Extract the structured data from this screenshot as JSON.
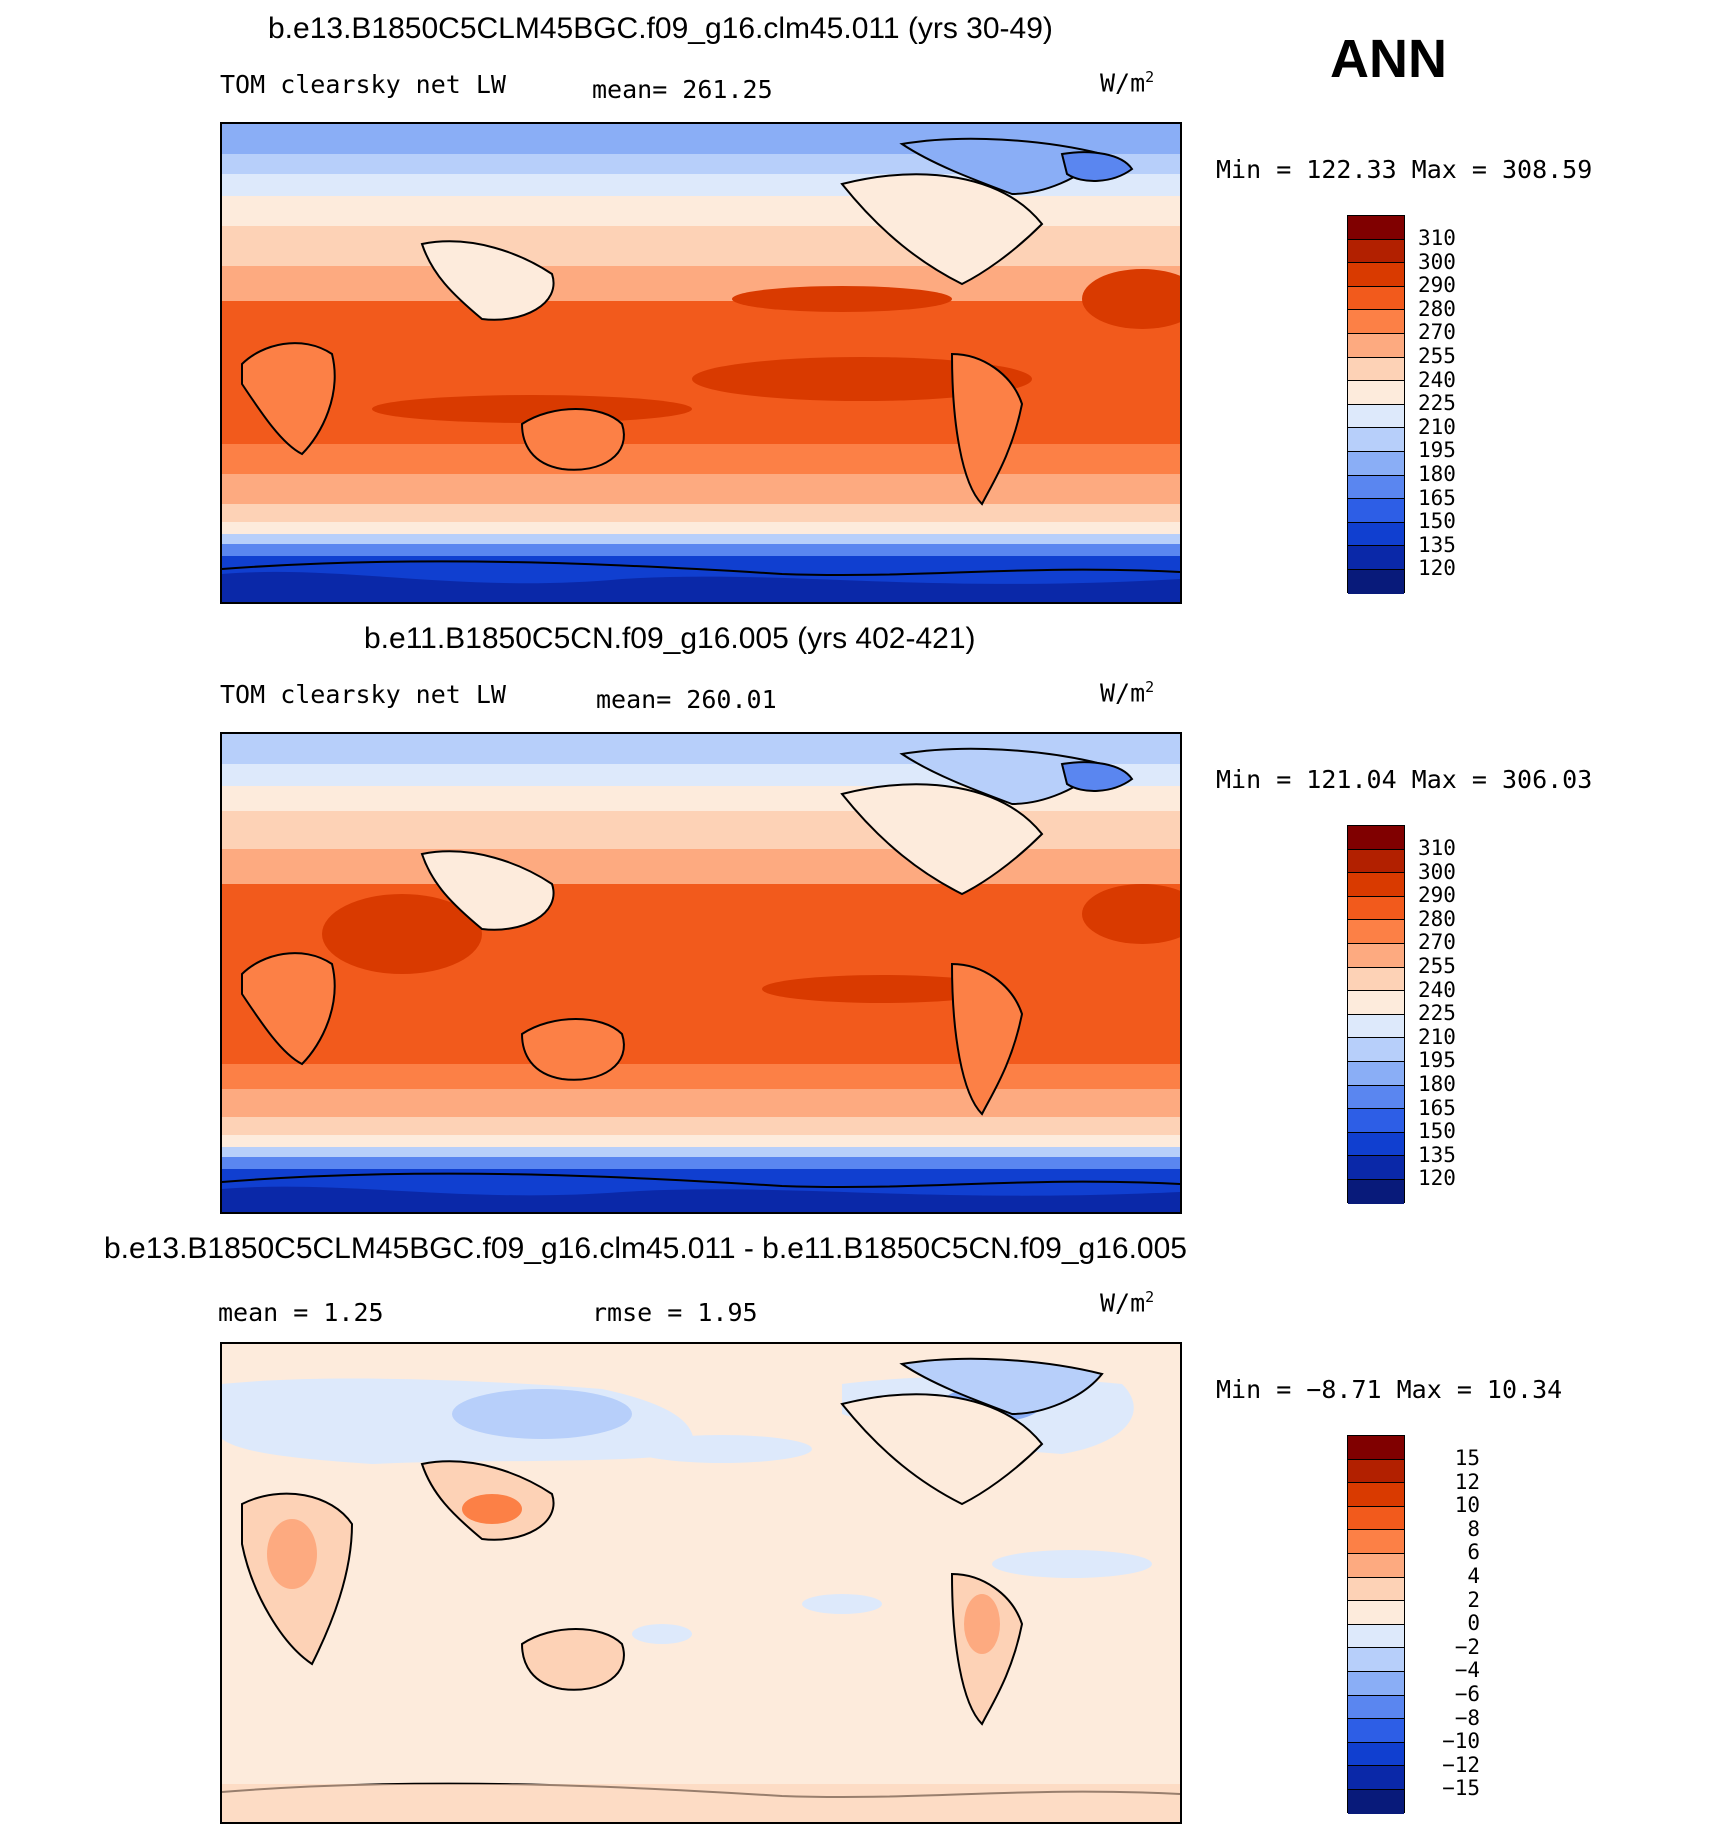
{
  "season": "ANN",
  "panels": [
    {
      "title": "b.e13.B1850C5CLM45BGC.f09_g16.clm45.011 (yrs 30-49)",
      "variable": "TOM clearsky net LW",
      "stat_text": "mean= 261.25",
      "units_base": "W/m",
      "units_exp": "2",
      "minmax": "Min = 122.33 Max = 308.59",
      "levels": [
        "310",
        "300",
        "290",
        "280",
        "270",
        "255",
        "240",
        "225",
        "210",
        "195",
        "180",
        "165",
        "150",
        "135",
        "120"
      ]
    },
    {
      "title": "b.e11.B1850C5CN.f09_g16.005 (yrs 402-421)",
      "variable": "TOM clearsky net LW",
      "stat_text": "mean= 260.01",
      "units_base": "W/m",
      "units_exp": "2",
      "minmax": "Min = 121.04 Max = 306.03",
      "levels": [
        "310",
        "300",
        "290",
        "280",
        "270",
        "255",
        "240",
        "225",
        "210",
        "195",
        "180",
        "165",
        "150",
        "135",
        "120"
      ]
    },
    {
      "title": "b.e13.B1850C5CLM45BGC.f09_g16.clm45.011 - b.e11.B1850C5CN.f09_g16.005",
      "mean_text": "mean =    1.25",
      "rmse_text": "rmse =    1.95",
      "units_base": "W/m",
      "units_exp": "2",
      "minmax": "Min =  −8.71 Max =   10.34",
      "levels": [
        "15",
        "12",
        "10",
        "8",
        "6",
        "4",
        "2",
        "0",
        "−2",
        "−4",
        "−6",
        "−8",
        "−10",
        "−12",
        "−15"
      ]
    }
  ],
  "colors": {
    "seq": [
      "#800000",
      "#b22000",
      "#d93a00",
      "#f25a1c",
      "#fc8046",
      "#fdaa80",
      "#fdd2b6",
      "#fdebdc",
      "#dde9fb",
      "#b7cffa",
      "#8aaef6",
      "#5a86f0",
      "#2d5ee6",
      "#103fd0",
      "#0a28a8",
      "#081a7a"
    ],
    "div": [
      "#800000",
      "#b22000",
      "#d93a00",
      "#f25a1c",
      "#fc8046",
      "#fdaa80",
      "#fdd2b6",
      "#fdebdc",
      "#dde9fb",
      "#b7cffa",
      "#8aaef6",
      "#5a86f0",
      "#2d5ee6",
      "#103fd0",
      "#0a28a8",
      "#081a7a"
    ]
  }
}
